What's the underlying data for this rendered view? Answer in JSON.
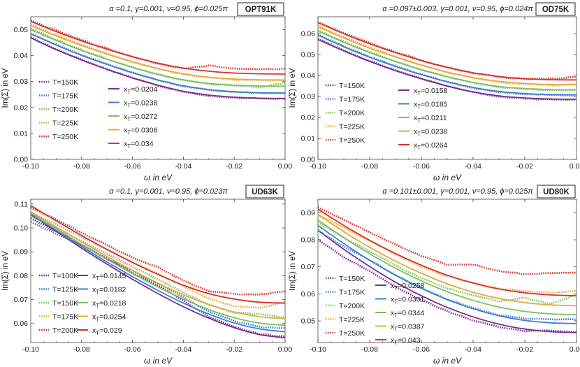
{
  "chart_data": [
    {
      "type": "line",
      "badge": "OPT91K",
      "title": "α =0.1, γ=0.001, ν=0.95, ϕ=0.025π",
      "xlabel": "ω  in eV",
      "ylabel": "Im(Σ)  in eV",
      "xlim": [
        -0.1,
        0.0
      ],
      "ylim": [
        0,
        0.055
      ],
      "xticks": [
        "-0.10",
        "-0.08",
        "-0.06",
        "-0.04",
        "-0.02",
        "0.00"
      ],
      "yticks": [
        "0.00",
        "0.01",
        "0.02",
        "0.03",
        "0.04",
        "0.05"
      ],
      "x": [
        -0.1,
        -0.09,
        -0.08,
        -0.07,
        -0.06,
        -0.05,
        -0.04,
        -0.03,
        -0.02,
        -0.01,
        0.0
      ],
      "data_legend": [
        "T=150K",
        "T=175K",
        "T=200K",
        "T=225K",
        "T=250K"
      ],
      "fit_legend": [
        "xT=0.0204",
        "xT=0.0238",
        "xT=0.0272",
        "xT=0.0306",
        "xT=0.034"
      ],
      "series": [
        {
          "name": "T=150K",
          "color": "#7b2c91",
          "data": [
            0.047,
            0.0425,
            0.0385,
            0.0348,
            0.0315,
            0.0285,
            0.026,
            0.0245,
            0.0238,
            0.0234,
            0.0233
          ],
          "fit": [
            0.0469,
            0.0423,
            0.0383,
            0.0347,
            0.0314,
            0.0286,
            0.0263,
            0.0248,
            0.024,
            0.0236,
            0.0235
          ]
        },
        {
          "name": "T=175K",
          "color": "#3f7fcf",
          "data": [
            0.0485,
            0.0443,
            0.0403,
            0.0368,
            0.0335,
            0.0306,
            0.0282,
            0.0268,
            0.026,
            0.0256,
            0.0255
          ],
          "fit": [
            0.0484,
            0.0441,
            0.0401,
            0.0366,
            0.0334,
            0.0306,
            0.0284,
            0.0269,
            0.0261,
            0.0257,
            0.0256
          ]
        },
        {
          "name": "T=200K",
          "color": "#7cc05e",
          "data": [
            0.0505,
            0.0462,
            0.0422,
            0.0388,
            0.0355,
            0.0327,
            0.0305,
            0.029,
            0.0285,
            0.0278,
            0.0295
          ],
          "fit": [
            0.05,
            0.0459,
            0.042,
            0.0386,
            0.0355,
            0.0328,
            0.0307,
            0.0293,
            0.0286,
            0.0283,
            0.0282
          ]
        },
        {
          "name": "T=225K",
          "color": "#e8a938",
          "data": [
            0.052,
            0.048,
            0.0442,
            0.0408,
            0.0376,
            0.0349,
            0.0328,
            0.0315,
            0.0308,
            0.0305,
            0.0305
          ],
          "fit": [
            0.0516,
            0.0476,
            0.0439,
            0.0406,
            0.0376,
            0.035,
            0.033,
            0.0317,
            0.031,
            0.0307,
            0.0306
          ]
        },
        {
          "name": "T=250K",
          "color": "#d8312c",
          "data": [
            0.0535,
            0.0497,
            0.046,
            0.0427,
            0.0396,
            0.037,
            0.035,
            0.0362,
            0.035,
            0.0347,
            0.035
          ],
          "fit": [
            0.0532,
            0.0493,
            0.0457,
            0.0425,
            0.0396,
            0.0371,
            0.0352,
            0.034,
            0.0333,
            0.033,
            0.0329
          ]
        }
      ]
    },
    {
      "type": "line",
      "badge": "OD75K",
      "title": "α =0.097±0.003, γ=0.001, ν=0.95, ϕ=0.024π",
      "xlabel": "ω  in eV",
      "ylabel": "Im(Σ)  in eV",
      "xlim": [
        -0.1,
        0.0
      ],
      "ylim": [
        0,
        0.068
      ],
      "xticks": [
        "-0.10",
        "-0.08",
        "-0.06",
        "-0.04",
        "-0.02",
        "0.00"
      ],
      "yticks": [
        "0.00",
        "0.01",
        "0.02",
        "0.03",
        "0.04",
        "0.05",
        "0.06"
      ],
      "x": [
        -0.1,
        -0.09,
        -0.08,
        -0.07,
        -0.06,
        -0.05,
        -0.04,
        -0.03,
        -0.02,
        -0.01,
        0.0
      ],
      "data_legend": [
        "T=150K",
        "T=175K",
        "T=200K",
        "T=225K",
        "T=250K"
      ],
      "fit_legend": [
        "xT=0.0158",
        "xT=0.0185",
        "xT=0.0211",
        "xT=0.0238",
        "xT=0.0264"
      ],
      "series": [
        {
          "name": "T=150K",
          "color": "#7b2c91",
          "data": [
            0.0575,
            0.052,
            0.047,
            0.0425,
            0.0385,
            0.035,
            0.032,
            0.03,
            0.029,
            0.0285,
            0.0285
          ],
          "fit": [
            0.0572,
            0.0517,
            0.0467,
            0.0423,
            0.0384,
            0.035,
            0.0322,
            0.0303,
            0.0293,
            0.0288,
            0.0287
          ]
        },
        {
          "name": "T=175K",
          "color": "#3f7fcf",
          "data": [
            0.0595,
            0.054,
            0.049,
            0.0445,
            0.0405,
            0.037,
            0.034,
            0.032,
            0.0312,
            0.0307,
            0.0305
          ],
          "fit": [
            0.0592,
            0.0537,
            0.0487,
            0.0443,
            0.0404,
            0.037,
            0.0343,
            0.0324,
            0.0314,
            0.0309,
            0.0308
          ]
        },
        {
          "name": "T=200K",
          "color": "#7cc05e",
          "data": [
            0.0615,
            0.0562,
            0.0512,
            0.0468,
            0.0428,
            0.0393,
            0.0365,
            0.0345,
            0.0335,
            0.033,
            0.0328
          ],
          "fit": [
            0.0612,
            0.0558,
            0.0509,
            0.0466,
            0.0427,
            0.0394,
            0.0367,
            0.0348,
            0.0338,
            0.0333,
            0.0332
          ]
        },
        {
          "name": "T=225K",
          "color": "#e8a938",
          "data": [
            0.0635,
            0.0582,
            0.0534,
            0.049,
            0.045,
            0.0415,
            0.0388,
            0.0368,
            0.0358,
            0.0354,
            0.0358
          ],
          "fit": [
            0.0632,
            0.0579,
            0.053,
            0.0488,
            0.0449,
            0.0416,
            0.039,
            0.0372,
            0.0362,
            0.0357,
            0.0356
          ]
        },
        {
          "name": "T=250K",
          "color": "#d8312c",
          "data": [
            0.0655,
            0.0602,
            0.0555,
            0.0512,
            0.0472,
            0.0438,
            0.0412,
            0.0393,
            0.0383,
            0.0385,
            0.0392
          ],
          "fit": [
            0.0652,
            0.0599,
            0.0551,
            0.0509,
            0.0471,
            0.0439,
            0.0413,
            0.0395,
            0.0385,
            0.038,
            0.0379
          ]
        }
      ]
    },
    {
      "type": "line",
      "badge": "UD63K",
      "title": "α =0.1, γ=0.001, ν=0.95, ϕ=0.023π",
      "xlabel": "ω  in eV",
      "ylabel": "Im(Σ)  in eV",
      "xlim": [
        -0.1,
        0.0
      ],
      "ylim": [
        0.052,
        0.112
      ],
      "xticks": [
        "-0.10",
        "-0.08",
        "-0.06",
        "-0.04",
        "-0.02",
        "0.00"
      ],
      "yticks": [
        "0.06",
        "0.07",
        "0.08",
        "0.09",
        "0.10",
        "0.11"
      ],
      "x": [
        -0.1,
        -0.09,
        -0.08,
        -0.07,
        -0.06,
        -0.05,
        -0.04,
        -0.03,
        -0.02,
        -0.01,
        0.0
      ],
      "data_legend": [
        "T=100K",
        "T=125K",
        "T=150K",
        "T=175K",
        "T=200K"
      ],
      "fit_legend": [
        "xT=0.0145",
        "xT=0.0182",
        "xT=0.0218",
        "xT=0.0254",
        "xT=0.029"
      ],
      "series": [
        {
          "name": "T=100K",
          "color": "#7b2c91",
          "data": [
            0.104,
            0.0985,
            0.093,
            0.087,
            0.0812,
            0.0758,
            0.0695,
            0.0628,
            0.0585,
            0.0555,
            0.0545
          ],
          "fit": [
            0.1055,
            0.0985,
            0.0915,
            0.0848,
            0.0785,
            0.0725,
            0.067,
            0.0622,
            0.0582,
            0.0553,
            0.054
          ]
        },
        {
          "name": "T=125K",
          "color": "#3f7fcf",
          "data": [
            0.1025,
            0.0975,
            0.0928,
            0.087,
            0.082,
            0.0766,
            0.071,
            0.065,
            0.061,
            0.0585,
            0.058
          ],
          "fit": [
            0.1058,
            0.099,
            0.0922,
            0.0857,
            0.0796,
            0.0738,
            0.0685,
            0.0639,
            0.0602,
            0.0577,
            0.0565
          ]
        },
        {
          "name": "T=150K",
          "color": "#7cc05e",
          "data": [
            0.1048,
            0.1,
            0.0945,
            0.089,
            0.0838,
            0.0785,
            0.073,
            0.0678,
            0.0645,
            0.064,
            0.0625
          ],
          "fit": [
            0.1063,
            0.0997,
            0.0931,
            0.0868,
            0.0809,
            0.0753,
            0.0702,
            0.0658,
            0.0624,
            0.0601,
            0.0592
          ]
        },
        {
          "name": "T=175K",
          "color": "#e8a938",
          "data": [
            0.1065,
            0.1015,
            0.0962,
            0.0908,
            0.0858,
            0.0808,
            0.0755,
            0.0705,
            0.0672,
            0.0665,
            0.069
          ],
          "fit": [
            0.1068,
            0.1004,
            0.0941,
            0.088,
            0.0823,
            0.0769,
            0.072,
            0.0679,
            0.0648,
            0.0628,
            0.062
          ]
        },
        {
          "name": "T=200K",
          "color": "#d8312c",
          "data": [
            0.1085,
            0.1035,
            0.098,
            0.0928,
            0.0875,
            0.0835,
            0.078,
            0.0735,
            0.0723,
            0.072,
            0.0735
          ],
          "fit": [
            0.1093,
            0.103,
            0.0968,
            0.091,
            0.0855,
            0.0805,
            0.076,
            0.0725,
            0.0702,
            0.0689,
            0.0685
          ]
        }
      ]
    },
    {
      "type": "line",
      "badge": "UD80K",
      "title": "α =0.101±0.001, γ=0.001, ν=0.95, ϕ=0.025π",
      "xlabel": "ω  in eV",
      "ylabel": "Im(Σ)  in eV",
      "xlim": [
        -0.1,
        0.0
      ],
      "ylim": [
        0.042,
        0.095
      ],
      "xticks": [
        "-0.10",
        "-0.08",
        "-0.06",
        "-0.04",
        "-0.02",
        "0.00"
      ],
      "yticks": [
        "0.05",
        "0.06",
        "0.07",
        "0.08",
        "0.09"
      ],
      "x": [
        -0.1,
        -0.09,
        -0.08,
        -0.07,
        -0.06,
        -0.05,
        -0.04,
        -0.03,
        -0.02,
        -0.01,
        0.0
      ],
      "data_legend": [
        "T=150K",
        "T=175K",
        "T=200K",
        "T=225K",
        "T=250K"
      ],
      "fit_legend": [
        "xT=0.0258",
        "xT=0.0301",
        "xT=0.0344",
        "xT=0.0387",
        "xT=0.043"
      ],
      "series": [
        {
          "name": "T=150K",
          "color": "#7b2c91",
          "data": [
            0.08,
            0.0735,
            0.0685,
            0.0625,
            0.0578,
            0.0535,
            0.0502,
            0.0478,
            0.0462,
            0.0465,
            0.0458
          ],
          "fit": [
            0.0835,
            0.0765,
            0.0701,
            0.0643,
            0.0593,
            0.055,
            0.0515,
            0.0488,
            0.047,
            0.046,
            0.0457
          ]
        },
        {
          "name": "T=175K",
          "color": "#3f7fcf",
          "data": [
            0.0835,
            0.0775,
            0.0725,
            0.067,
            0.0622,
            0.058,
            0.0548,
            0.0522,
            0.051,
            0.0505,
            0.0505
          ],
          "fit": [
            0.0853,
            0.0786,
            0.0724,
            0.0669,
            0.062,
            0.0579,
            0.0545,
            0.0519,
            0.0502,
            0.0493,
            0.049
          ]
        },
        {
          "name": "T=200K",
          "color": "#7cc05e",
          "data": [
            0.0865,
            0.0808,
            0.0758,
            0.0705,
            0.0658,
            0.062,
            0.0595,
            0.0572,
            0.0585,
            0.0562,
            0.0598
          ],
          "fit": [
            0.0873,
            0.0808,
            0.0748,
            0.0695,
            0.0648,
            0.0608,
            0.0576,
            0.0551,
            0.0535,
            0.0526,
            0.0523
          ]
        },
        {
          "name": "T=225K",
          "color": "#e8a938",
          "data": [
            0.0892,
            0.0845,
            0.0795,
            0.0745,
            0.07,
            0.0665,
            0.064,
            0.062,
            0.061,
            0.0605,
            0.0612
          ],
          "fit": [
            0.0893,
            0.083,
            0.0772,
            0.0721,
            0.0676,
            0.0637,
            0.0606,
            0.0583,
            0.0568,
            0.0559,
            0.0556
          ]
        },
        {
          "name": "T=250K",
          "color": "#d8312c",
          "data": [
            0.092,
            0.0875,
            0.0828,
            0.0782,
            0.074,
            0.0708,
            0.0708,
            0.0685,
            0.0672,
            0.0678,
            0.0678
          ],
          "fit": [
            0.0913,
            0.0853,
            0.0798,
            0.0749,
            0.0706,
            0.0669,
            0.064,
            0.0618,
            0.0604,
            0.0596,
            0.0593
          ]
        }
      ]
    }
  ]
}
